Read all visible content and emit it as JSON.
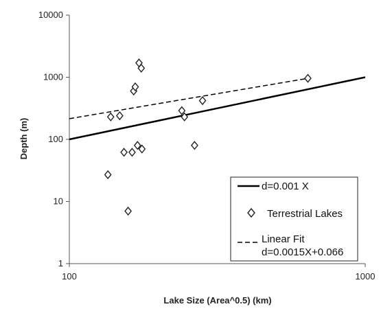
{
  "chart_data": {
    "type": "scatter",
    "xlabel": "Lake Size (Area^0.5)  (km)",
    "ylabel": "Depth (m)",
    "x_scale": "log",
    "y_scale": "log",
    "xlim": [
      100,
      1000
    ],
    "ylim": [
      1,
      10000
    ],
    "x_ticks": [
      "100",
      "1000"
    ],
    "y_ticks": [
      "1",
      "10",
      "100",
      "1000",
      "10000"
    ],
    "grid": false,
    "legend_position": "bottom-right",
    "series": [
      {
        "name": "d=0.001 X",
        "kind": "line",
        "style": "solid",
        "x": [
          100,
          1000
        ],
        "y": [
          100,
          1000
        ]
      },
      {
        "name": "Terrestrial Lakes",
        "kind": "scatter",
        "marker": "diamond",
        "x": [
          135,
          138,
          148,
          153,
          158,
          163,
          165,
          167,
          170,
          172,
          175,
          176,
          240,
          245,
          265,
          282,
          640
        ],
        "y": [
          27,
          230,
          240,
          62,
          7,
          62,
          600,
          700,
          80,
          1700,
          1400,
          70,
          290,
          230,
          80,
          420,
          960
        ]
      },
      {
        "name": "Linear Fit\nd=0.0015X+0.066",
        "legend_line1": "Linear Fit",
        "legend_line2": "d=0.0015X+0.066",
        "kind": "line",
        "style": "dashed",
        "x": [
          100,
          640
        ],
        "y": [
          215,
          960
        ]
      }
    ]
  }
}
